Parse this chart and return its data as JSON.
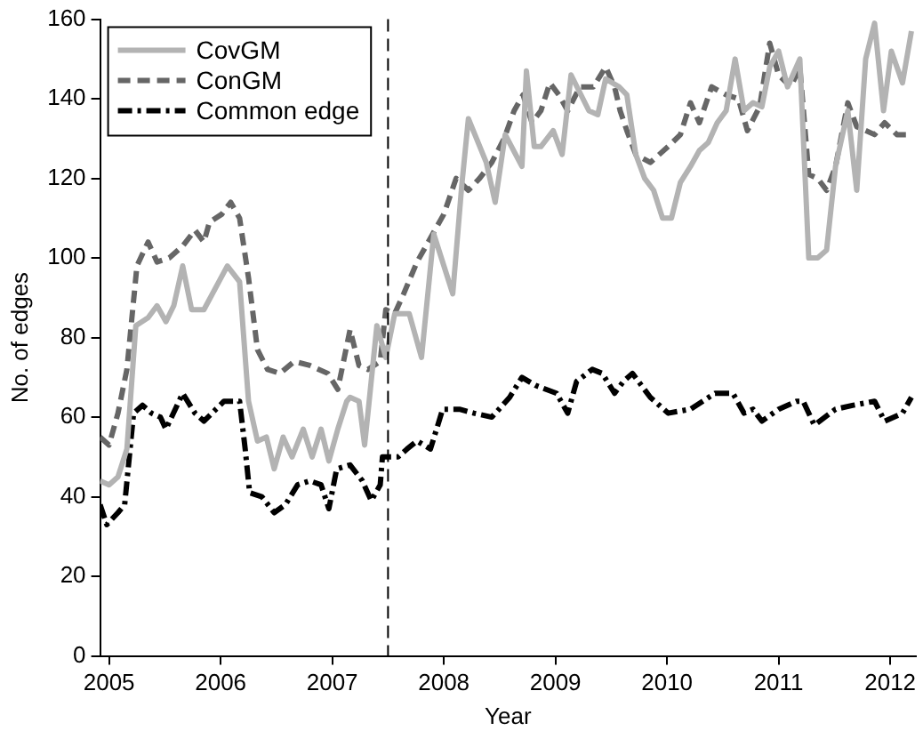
{
  "chart_data": {
    "type": "line",
    "xlabel": "Year",
    "ylabel": "No. of edges",
    "xlim": [
      2004.92,
      2012.23
    ],
    "xticks": [
      2005,
      2006,
      2007,
      2008,
      2009,
      2010,
      2011,
      2012
    ],
    "ylim": [
      0,
      160
    ],
    "yticks": [
      0,
      20,
      40,
      60,
      80,
      100,
      120,
      140,
      160
    ],
    "grid": false,
    "legend": "top left",
    "marker": "none",
    "ref_lines": [
      {
        "axis": "x",
        "value": 2007.5,
        "color": "#000000",
        "line_style": "dashed"
      }
    ],
    "series": [
      {
        "name": "CovGM",
        "color": "#b3b3b3",
        "line_style": "solid",
        "x": [
          2004.92,
          2005.0,
          2005.08,
          2005.16,
          2005.24,
          2005.35,
          2005.43,
          2005.51,
          2005.58,
          2005.66,
          2005.74,
          2005.85,
          2006.06,
          2006.17,
          2006.25,
          2006.33,
          2006.41,
          2006.48,
          2006.56,
          2006.64,
          2006.74,
          2006.82,
          2006.9,
          2006.97,
          2007.05,
          2007.13,
          2007.16,
          2007.24,
          2007.29,
          2007.32,
          2007.4,
          2007.48,
          2007.56,
          2007.69,
          2007.8,
          2007.91,
          2008.08,
          2008.16,
          2008.22,
          2008.38,
          2008.46,
          2008.55,
          2008.7,
          2008.74,
          2008.81,
          2008.87,
          2008.98,
          2009.06,
          2009.14,
          2009.3,
          2009.38,
          2009.45,
          2009.57,
          2009.64,
          2009.72,
          2009.8,
          2009.88,
          2009.96,
          2010.04,
          2010.12,
          2010.21,
          2010.29,
          2010.37,
          2010.45,
          2010.53,
          2010.61,
          2010.69,
          2010.77,
          2010.85,
          2010.92,
          2011.0,
          2011.08,
          2011.19,
          2011.27,
          2011.35,
          2011.43,
          2011.51,
          2011.62,
          2011.7,
          2011.78,
          2011.86,
          2011.94,
          2012.01,
          2012.11,
          2012.19
        ],
        "values": [
          44,
          43,
          45,
          52,
          83,
          85,
          88,
          84,
          88,
          98,
          87,
          87,
          98,
          94,
          64,
          54,
          55,
          47,
          55,
          50,
          57,
          50,
          57,
          49,
          57,
          64,
          65,
          64,
          53,
          61,
          83,
          75,
          86,
          86,
          75,
          106,
          91,
          118,
          135,
          124,
          114,
          131,
          123,
          147,
          128,
          128,
          132,
          126,
          146,
          137,
          136,
          145,
          143,
          141,
          126,
          120,
          117,
          110,
          110,
          119,
          123,
          127,
          129,
          134,
          137,
          150,
          137,
          139,
          138,
          148,
          152,
          143,
          150,
          100,
          100,
          102,
          123,
          137,
          117,
          150,
          159,
          137,
          152,
          144,
          157
        ]
      },
      {
        "name": "ConGM",
        "color": "#666666",
        "line_style": "dashed",
        "x": [
          2004.92,
          2005.0,
          2005.08,
          2005.16,
          2005.25,
          2005.35,
          2005.43,
          2005.54,
          2005.66,
          2005.77,
          2005.85,
          2005.9,
          2006.01,
          2006.09,
          2006.17,
          2006.25,
          2006.33,
          2006.42,
          2006.53,
          2006.66,
          2006.8,
          2006.96,
          2007.05,
          2007.16,
          2007.24,
          2007.32,
          2007.43,
          2007.48,
          2007.56,
          2007.64,
          2007.76,
          2007.88,
          2008.0,
          2008.11,
          2008.22,
          2008.32,
          2008.43,
          2008.54,
          2008.63,
          2008.71,
          2008.79,
          2008.87,
          2008.95,
          2009.03,
          2009.11,
          2009.22,
          2009.34,
          2009.45,
          2009.53,
          2009.58,
          2009.64,
          2009.72,
          2009.85,
          2010.01,
          2010.12,
          2010.21,
          2010.29,
          2010.4,
          2010.53,
          2010.64,
          2010.72,
          2010.83,
          2010.92,
          2011.0,
          2011.11,
          2011.19,
          2011.27,
          2011.35,
          2011.43,
          2011.51,
          2011.62,
          2011.7,
          2011.86,
          2011.95,
          2012.06,
          2012.17
        ],
        "values": [
          55,
          53,
          61,
          72,
          98,
          104,
          99,
          100,
          103,
          107,
          104,
          109,
          111,
          114,
          110,
          95,
          77,
          72,
          71,
          74,
          73,
          71,
          67,
          82,
          73,
          72,
          74,
          87,
          86,
          91,
          99,
          105,
          111,
          120,
          117,
          120,
          124,
          130,
          137,
          141,
          134,
          137,
          144,
          141,
          137,
          143,
          143,
          148,
          143,
          137,
          132,
          126,
          124,
          128,
          131,
          139,
          134,
          143,
          141,
          140,
          132,
          138,
          154,
          146,
          143,
          148,
          121,
          120,
          117,
          123,
          139,
          133,
          131,
          134,
          131,
          131
        ]
      },
      {
        "name": "Common edge",
        "color": "#000000",
        "line_style": "dashdot",
        "x": [
          2004.92,
          2004.98,
          2005.08,
          2005.14,
          2005.22,
          2005.3,
          2005.38,
          2005.46,
          2005.51,
          2005.66,
          2005.77,
          2005.85,
          2006.03,
          2006.17,
          2006.22,
          2006.26,
          2006.37,
          2006.48,
          2006.58,
          2006.69,
          2006.8,
          2006.9,
          2006.97,
          2007.04,
          2007.16,
          2007.27,
          2007.35,
          2007.43,
          2007.45,
          2007.59,
          2007.67,
          2007.76,
          2007.88,
          2007.99,
          2008.14,
          2008.27,
          2008.43,
          2008.59,
          2008.7,
          2008.82,
          2009.01,
          2009.11,
          2009.19,
          2009.33,
          2009.42,
          2009.53,
          2009.61,
          2009.69,
          2009.85,
          2010.01,
          2010.21,
          2010.43,
          2010.59,
          2010.69,
          2010.77,
          2010.85,
          2011.0,
          2011.16,
          2011.22,
          2011.32,
          2011.51,
          2011.67,
          2011.86,
          2011.95,
          2012.11,
          2012.19
        ],
        "values": [
          38,
          33,
          36,
          38,
          61,
          63,
          61,
          60,
          57,
          66,
          61,
          59,
          64,
          64,
          52,
          41,
          40,
          36,
          38,
          43,
          44,
          43,
          37,
          47,
          48,
          44,
          39,
          43,
          50,
          50,
          52,
          54,
          52,
          62,
          62,
          61,
          60,
          65,
          70,
          68,
          66,
          61,
          69,
          72,
          71,
          66,
          69,
          71,
          65,
          61,
          62,
          66,
          66,
          61,
          62,
          59,
          62,
          64,
          64,
          58,
          62,
          63,
          64,
          59,
          61,
          65
        ]
      }
    ]
  }
}
